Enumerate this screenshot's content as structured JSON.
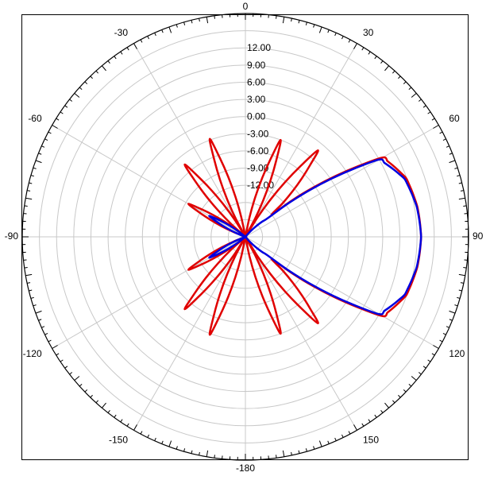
{
  "chart_data": {
    "type": "polar-line",
    "title": "",
    "angle_unit": "deg",
    "angle_zero": "top",
    "angle_direction": "clockwise",
    "angle_grid_step": 30,
    "angle_labels": [
      {
        "deg": 0,
        "text": "0"
      },
      {
        "deg": 30,
        "text": "30"
      },
      {
        "deg": 60,
        "text": "60"
      },
      {
        "deg": 90,
        "text": "90"
      },
      {
        "deg": 120,
        "text": "120"
      },
      {
        "deg": 150,
        "text": "150"
      },
      {
        "deg": 180,
        "text": "-180"
      },
      {
        "deg": -150,
        "text": "-150"
      },
      {
        "deg": -120,
        "text": "-120"
      },
      {
        "deg": -90,
        "text": "-90"
      },
      {
        "deg": -60,
        "text": "-60"
      },
      {
        "deg": -30,
        "text": "-30"
      }
    ],
    "r_range": [
      -21,
      18
    ],
    "r_grid_values": [
      -18,
      -15,
      -12,
      -9,
      -6,
      -3,
      0,
      3,
      6,
      9,
      12,
      15,
      18
    ],
    "r_tick_labels": [
      "-12.00",
      "-9.00",
      "-6.00",
      "-3.00",
      "0.00",
      "3.00",
      "6.00",
      "9.00",
      "12.00"
    ],
    "grid": true,
    "series": [
      {
        "color": "#e00000",
        "theta": [
          -180,
          -170,
          -160,
          -150,
          -140,
          -130,
          -120,
          -110,
          -100,
          -90,
          -80,
          -70,
          -60,
          -50,
          -40,
          -30,
          -20,
          -10,
          0,
          10,
          20,
          30,
          40,
          50,
          60,
          70,
          80,
          90,
          100,
          110,
          120,
          130,
          140,
          150,
          160,
          170,
          180
        ],
        "r": [
          -21,
          -21,
          -2.8,
          -21,
          -4.5,
          -21,
          -9.5,
          -21,
          -21,
          -21,
          -21,
          -21,
          -9.5,
          -21,
          -4.5,
          -21,
          -2.8,
          -21,
          -21,
          -21,
          -3,
          -21,
          -1.3,
          -15,
          6.7,
          8.9,
          9.5,
          9.7,
          9.5,
          8.9,
          6.7,
          -15,
          -1.3,
          -21,
          -3,
          -21,
          -21
        ]
      },
      {
        "color": "#0000e0",
        "theta": [
          -180,
          -170,
          -160,
          -150,
          -140,
          -130,
          -120,
          -110,
          -100,
          -90,
          -80,
          -70,
          -60,
          -50,
          -40,
          -30,
          -20,
          -10,
          0,
          10,
          20,
          30,
          40,
          50,
          60,
          70,
          80,
          90,
          100,
          110,
          120,
          130,
          140,
          150,
          160,
          170,
          180
        ],
        "r": [
          -21,
          -21,
          -21,
          -21,
          -21,
          -21,
          -13.7,
          -21,
          -21,
          -21,
          -21,
          -21,
          -13.7,
          -21,
          -21,
          -21,
          -21,
          -21,
          -21,
          -21,
          -21,
          -21,
          -21,
          -16,
          6,
          8.6,
          9.4,
          9.7,
          9.4,
          8.6,
          6,
          -16,
          -21,
          -21,
          -21,
          -21,
          -21
        ]
      }
    ]
  }
}
